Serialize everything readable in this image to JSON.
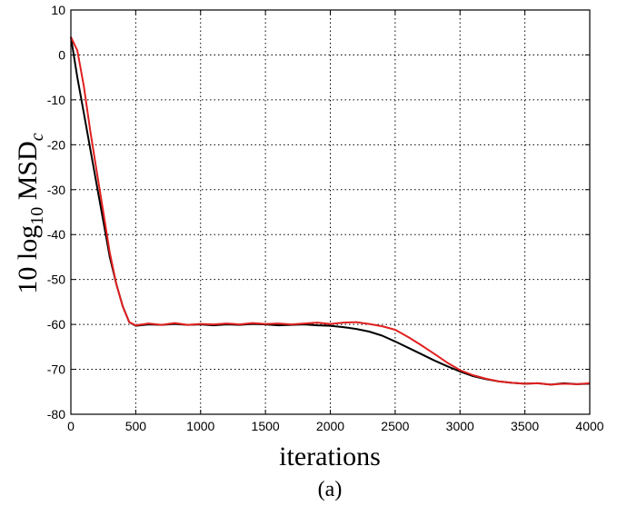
{
  "chart_data": {
    "type": "line",
    "xlabel": "iterations",
    "ylabel": "10 log10 MSDc",
    "ylabel_parts": {
      "prefix": "10 log",
      "log_sub": "10",
      "main": " MSD",
      "sub": "c"
    },
    "caption": "(a)",
    "xlim": [
      0,
      4000
    ],
    "ylim": [
      -80,
      10
    ],
    "x_ticks": [
      0,
      500,
      1000,
      1500,
      2000,
      2500,
      3000,
      3500,
      4000
    ],
    "y_ticks": [
      10,
      0,
      -10,
      -20,
      -30,
      -40,
      -50,
      -60,
      -70,
      -80
    ],
    "grid": true,
    "series": [
      {
        "color": "#000000",
        "x": [
          0,
          50,
          100,
          150,
          200,
          250,
          300,
          350,
          400,
          450,
          500,
          600,
          700,
          800,
          900,
          1000,
          1100,
          1200,
          1300,
          1400,
          1500,
          1600,
          1700,
          1800,
          1900,
          2000,
          2100,
          2200,
          2300,
          2400,
          2500,
          2600,
          2700,
          2800,
          2900,
          3000,
          3100,
          3200,
          3300,
          3400,
          3500,
          3600,
          3700,
          3800,
          3900,
          4000
        ],
        "y": [
          4,
          -5,
          -13,
          -21,
          -29,
          -37,
          -45,
          -51,
          -56,
          -59.5,
          -60.3,
          -60,
          -60.1,
          -59.9,
          -60.1,
          -60,
          -60.2,
          -60,
          -60.1,
          -59.9,
          -60,
          -60.2,
          -60.1,
          -60,
          -60.2,
          -60.3,
          -60.6,
          -61,
          -61.6,
          -62.5,
          -63.8,
          -65.2,
          -66.6,
          -68,
          -69.3,
          -70.5,
          -71.5,
          -72.2,
          -72.7,
          -73,
          -73.2,
          -73.1,
          -73.4,
          -73.1,
          -73.3,
          -73.2
        ]
      },
      {
        "color": "#e02020",
        "x": [
          0,
          50,
          100,
          150,
          200,
          250,
          300,
          350,
          400,
          450,
          500,
          600,
          700,
          800,
          900,
          1000,
          1100,
          1200,
          1300,
          1400,
          1500,
          1600,
          1700,
          1800,
          1900,
          2000,
          2100,
          2200,
          2300,
          2400,
          2500,
          2600,
          2700,
          2800,
          2900,
          3000,
          3100,
          3200,
          3300,
          3400,
          3500,
          3600,
          3700,
          3800,
          3900,
          4000
        ],
        "y": [
          4,
          1,
          -7,
          -17,
          -26,
          -35,
          -44,
          -51,
          -56,
          -59.5,
          -60.2,
          -59.8,
          -60.1,
          -59.7,
          -60.1,
          -59.9,
          -60,
          -59.8,
          -60,
          -59.7,
          -59.9,
          -59.8,
          -60,
          -59.8,
          -59.6,
          -59.9,
          -59.6,
          -59.5,
          -59.9,
          -60.4,
          -61.2,
          -62.8,
          -64.6,
          -66.5,
          -68.5,
          -70.2,
          -71.3,
          -72.1,
          -72.7,
          -73,
          -73.2,
          -73.1,
          -73.4,
          -73.2,
          -73.3,
          -73.1
        ]
      }
    ]
  }
}
